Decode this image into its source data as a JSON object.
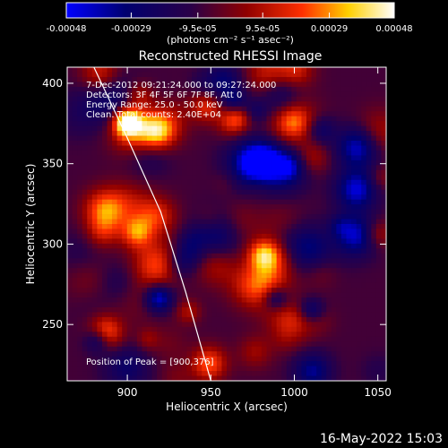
{
  "chart_data": {
    "type": "heatmap",
    "title": "Reconstructed RHESSI Image",
    "xlabel": "Heliocentric X (arcsec)",
    "ylabel": "Heliocentric Y (arcsec)",
    "xlim": [
      864,
      1055
    ],
    "ylim": [
      215,
      410
    ],
    "xticks": [
      900,
      950,
      1000,
      1050
    ],
    "yticks": [
      250,
      300,
      350,
      400
    ],
    "colorbar": {
      "ticks": [
        "-0.00048",
        "-0.00029",
        "-9.5e-05",
        "9.5e-05",
        "0.00029",
        "0.00048"
      ],
      "range": [
        -0.00048,
        0.00048
      ],
      "unit_label": "(photons cm⁻² s⁻¹ asec⁻²)"
    },
    "annotations": [
      "7-Dec-2012 09:21:24.000 to 09:27:24.000",
      "Detectors: 3F 4F 5F 6F 7F 8F, Att 0",
      "Energy Range: 25.0 - 50.0 keV",
      "Clean. Total counts: 2.40E+04"
    ],
    "peak_label": "Position of Peak = [900,376]",
    "peak": [
      900,
      376
    ],
    "limb_curve": [
      [
        880,
        410
      ],
      [
        900,
        366
      ],
      [
        920,
        320
      ],
      [
        935,
        270
      ],
      [
        950,
        215
      ]
    ],
    "intensity_grid_note": "pseudo-random cleaned RHESSI map; values sampled between colorbar min and max",
    "timestamp": "16-May-2022 15:03",
    "colormap": [
      "#0000ff",
      "#000060",
      "#200040",
      "#a00000",
      "#ff6000",
      "#ffff80",
      "#ffffff"
    ]
  }
}
